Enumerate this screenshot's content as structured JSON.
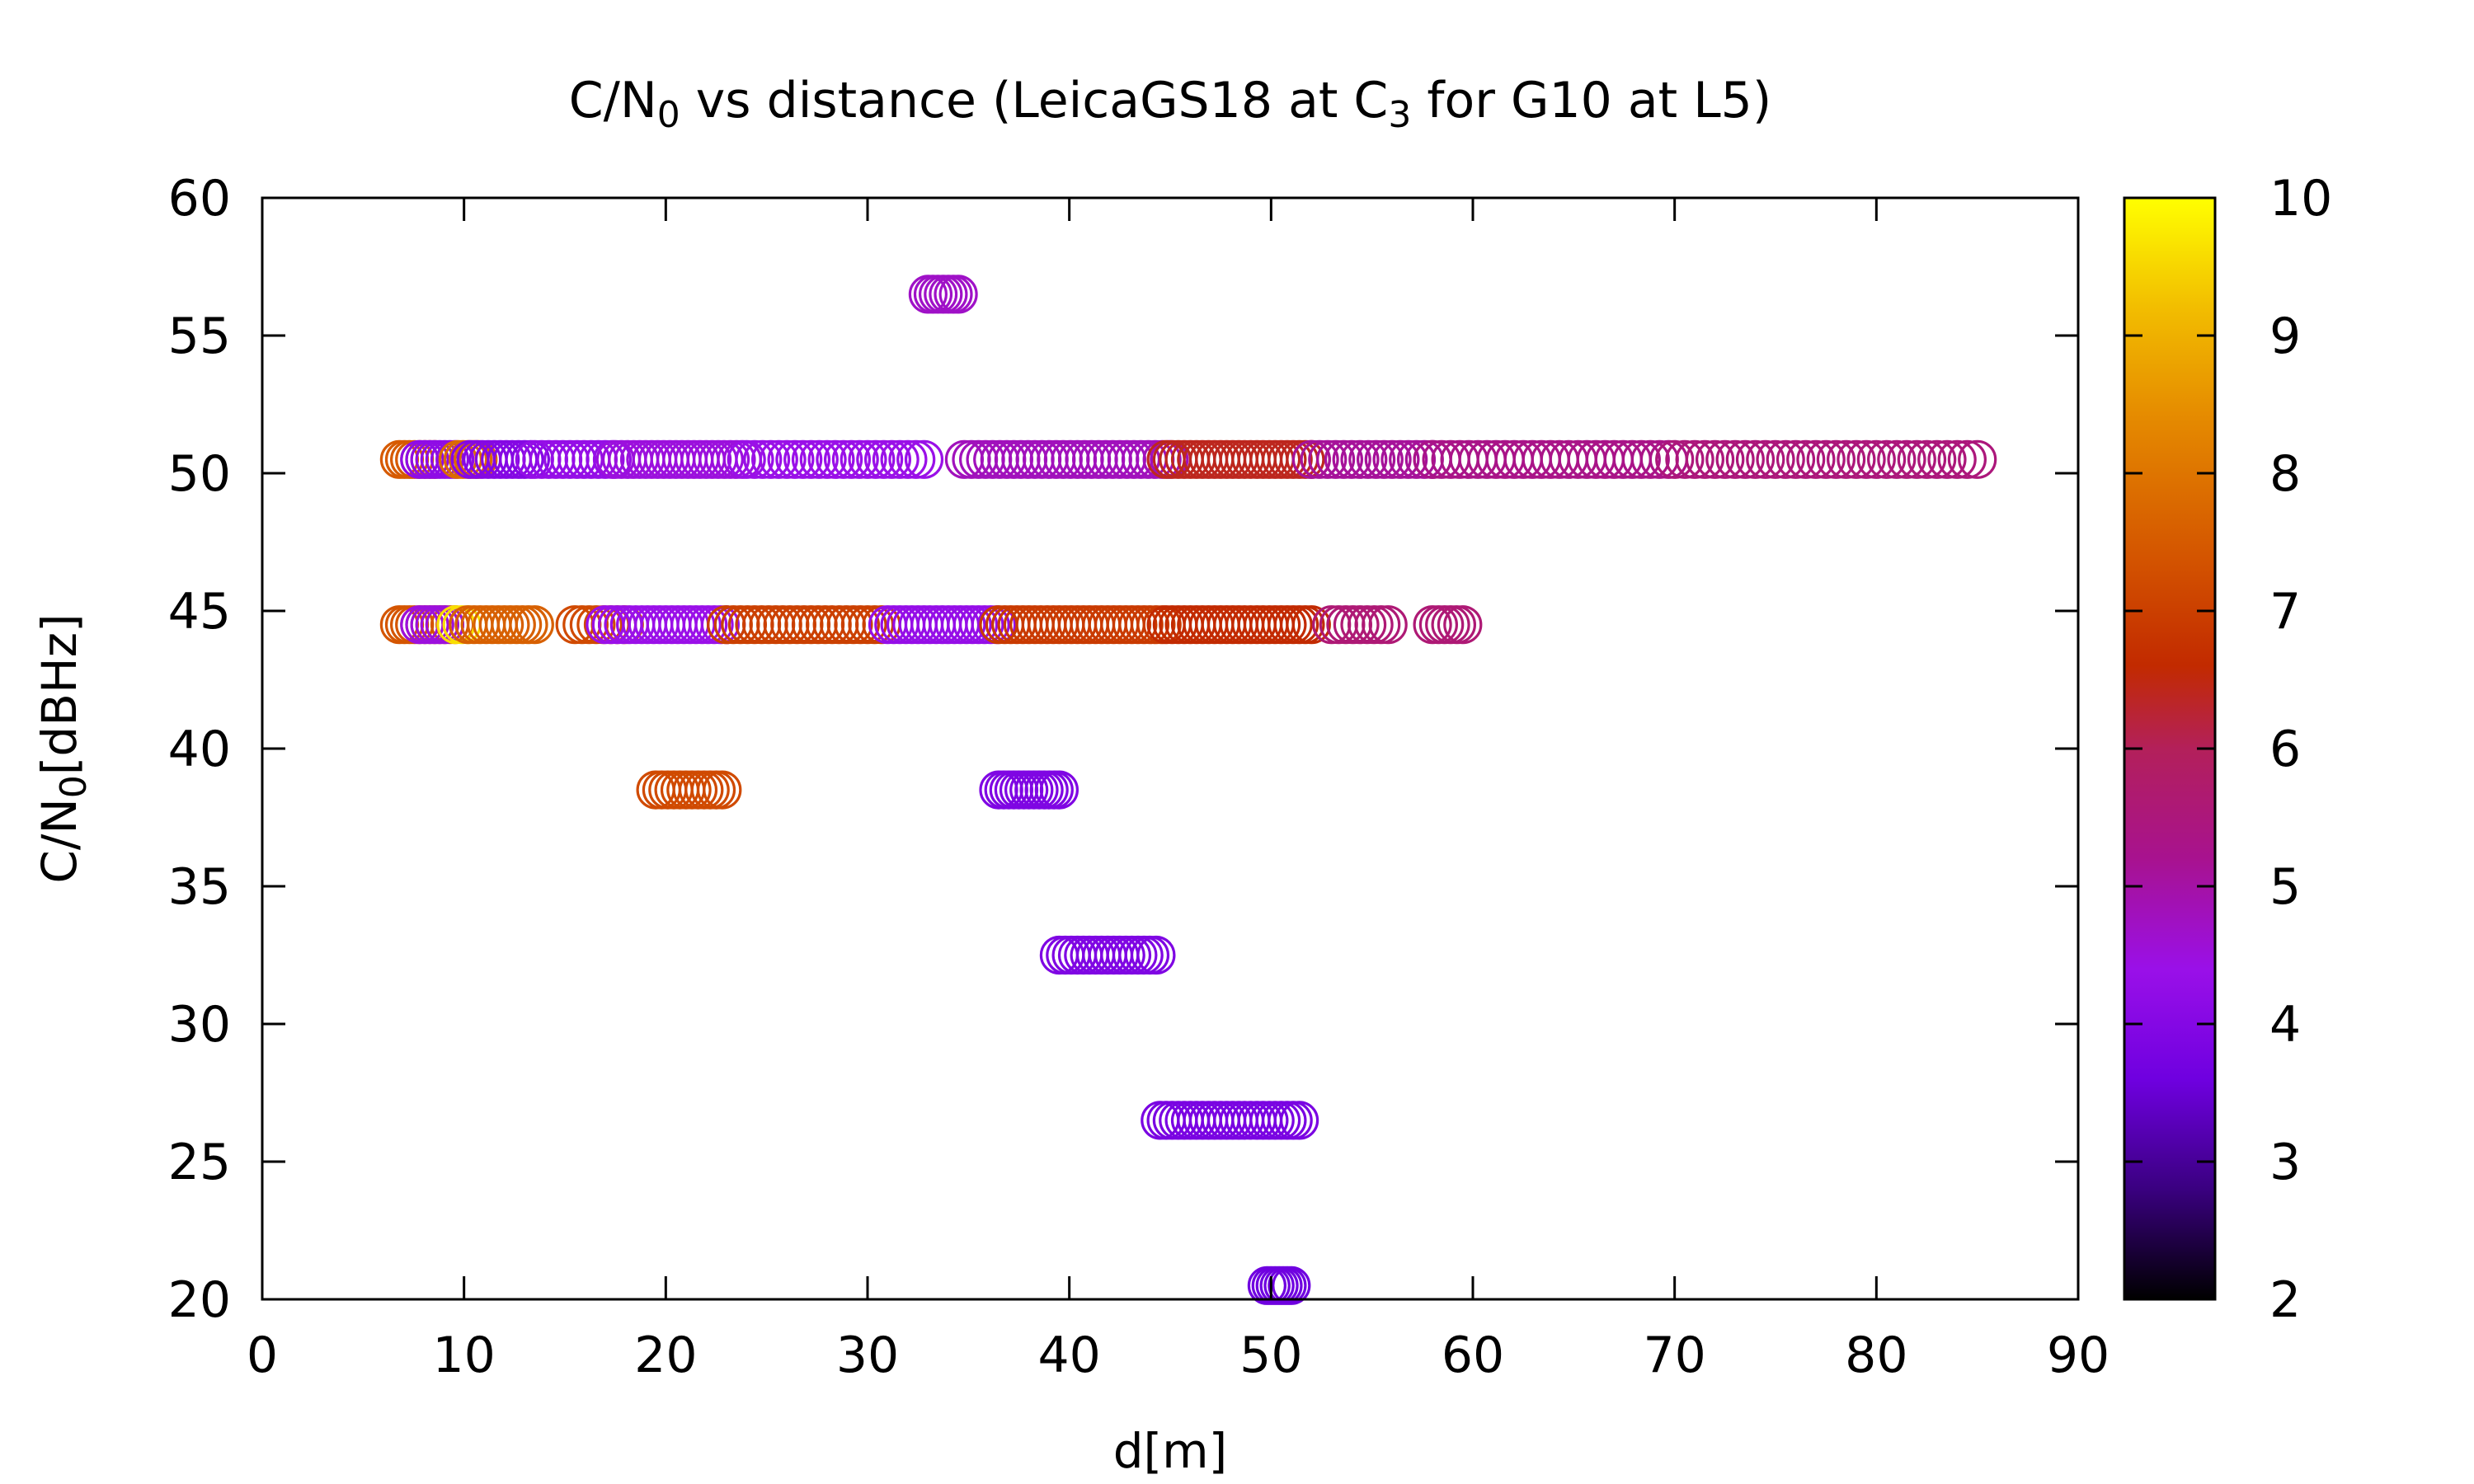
{
  "chart_data": {
    "type": "scatter",
    "title": {
      "parts": [
        {
          "text": "C/N"
        },
        {
          "text": "0",
          "sub": true
        },
        {
          "text": " vs distance (LeicaGS18 at C"
        },
        {
          "text": "3",
          "sub": true
        },
        {
          "text": " for G10 at L5)"
        }
      ]
    },
    "xlabel": "d[m]",
    "ylabel": {
      "parts": [
        {
          "text": "C/N"
        },
        {
          "text": "0",
          "sub": true
        },
        {
          "text": "[dBHz]"
        }
      ]
    },
    "xlim": [
      0,
      90
    ],
    "ylim": [
      20,
      60
    ],
    "x_ticks": [
      0,
      10,
      20,
      30,
      40,
      50,
      60,
      70,
      80,
      90
    ],
    "y_ticks": [
      20,
      25,
      30,
      35,
      40,
      45,
      50,
      55,
      60
    ],
    "grid": false,
    "marker": "open-circle",
    "colorbar": {
      "range": [
        2,
        10
      ],
      "ticks": [
        2,
        3,
        4,
        5,
        6,
        7,
        8,
        9,
        10
      ],
      "palette": "black-blue-purple-red-orange-yellow",
      "stops": [
        {
          "v": 2.0,
          "color": "#000000"
        },
        {
          "v": 2.8,
          "color": "#3a0080"
        },
        {
          "v": 3.6,
          "color": "#6f00e0"
        },
        {
          "v": 4.4,
          "color": "#9a10e8"
        },
        {
          "v": 5.2,
          "color": "#a8128f"
        },
        {
          "v": 6.0,
          "color": "#b3205a"
        },
        {
          "v": 6.6,
          "color": "#c22a00"
        },
        {
          "v": 7.4,
          "color": "#d45500"
        },
        {
          "v": 8.4,
          "color": "#e58a00"
        },
        {
          "v": 9.2,
          "color": "#f2bd00"
        },
        {
          "v": 10.0,
          "color": "#ffff00"
        }
      ]
    },
    "segments": [
      {
        "y": 56.5,
        "x_start": 33.0,
        "x_end": 34.5,
        "step": 0.25,
        "c": 4.7
      },
      {
        "y": 50.5,
        "x_start": 6.8,
        "x_end": 8.6,
        "step": 0.25,
        "c": 7.5
      },
      {
        "y": 50.5,
        "x_start": 7.8,
        "x_end": 9.6,
        "step": 0.25,
        "c": 4.2
      },
      {
        "y": 50.5,
        "x_start": 9.7,
        "x_end": 10.8,
        "step": 0.25,
        "c": 7.8
      },
      {
        "y": 50.5,
        "x_start": 10.3,
        "x_end": 13.5,
        "step": 0.3,
        "c": 4.0
      },
      {
        "y": 50.5,
        "x_start": 13.5,
        "x_end": 17.5,
        "step": 0.35,
        "c": 4.3
      },
      {
        "y": 50.5,
        "x_start": 17.5,
        "x_end": 24.0,
        "step": 0.3,
        "c": 4.5
      },
      {
        "y": 50.5,
        "x_start": 24.0,
        "x_end": 33.0,
        "step": 0.4,
        "c": 4.4
      },
      {
        "y": 50.5,
        "x_start": 34.8,
        "x_end": 45.0,
        "step": 0.35,
        "c": 4.8
      },
      {
        "y": 50.5,
        "x_start": 44.8,
        "x_end": 52.0,
        "step": 0.3,
        "c": 6.4
      },
      {
        "y": 50.5,
        "x_start": 52.0,
        "x_end": 58.0,
        "step": 0.4,
        "c": 5.1
      },
      {
        "y": 50.5,
        "x_start": 58.0,
        "x_end": 70.0,
        "step": 0.45,
        "c": 5.3
      },
      {
        "y": 50.5,
        "x_start": 70.0,
        "x_end": 85.0,
        "step": 0.5,
        "c": 5.5
      },
      {
        "y": 44.5,
        "x_start": 6.8,
        "x_end": 9.6,
        "step": 0.25,
        "c": 7.4
      },
      {
        "y": 44.5,
        "x_start": 7.8,
        "x_end": 9.2,
        "step": 0.25,
        "c": 4.5
      },
      {
        "y": 44.5,
        "x_start": 9.6,
        "x_end": 10.2,
        "step": 0.3,
        "c": 9.6
      },
      {
        "y": 44.5,
        "x_start": 10.2,
        "x_end": 13.5,
        "step": 0.3,
        "c": 7.6
      },
      {
        "y": 44.5,
        "x_start": 15.5,
        "x_end": 18.0,
        "step": 0.35,
        "c": 7.2
      },
      {
        "y": 44.5,
        "x_start": 17.0,
        "x_end": 23.0,
        "step": 0.3,
        "c": 4.4
      },
      {
        "y": 44.5,
        "x_start": 23.0,
        "x_end": 31.0,
        "step": 0.35,
        "c": 7.0
      },
      {
        "y": 44.5,
        "x_start": 31.0,
        "x_end": 36.5,
        "step": 0.3,
        "c": 4.3
      },
      {
        "y": 44.5,
        "x_start": 36.5,
        "x_end": 44.8,
        "step": 0.3,
        "c": 6.9
      },
      {
        "y": 44.5,
        "x_start": 44.8,
        "x_end": 52.0,
        "step": 0.3,
        "c": 6.6
      },
      {
        "y": 44.5,
        "x_start": 53.0,
        "x_end": 56.0,
        "step": 0.35,
        "c": 5.6
      },
      {
        "y": 44.5,
        "x_start": 58.0,
        "x_end": 59.5,
        "step": 0.3,
        "c": 5.6
      },
      {
        "y": 38.5,
        "x_start": 19.5,
        "x_end": 22.8,
        "step": 0.3,
        "c": 7.2
      },
      {
        "y": 38.5,
        "x_start": 36.5,
        "x_end": 39.5,
        "step": 0.25,
        "c": 3.9
      },
      {
        "y": 32.5,
        "x_start": 39.5,
        "x_end": 44.5,
        "step": 0.3,
        "c": 3.9
      },
      {
        "y": 26.5,
        "x_start": 44.5,
        "x_end": 51.5,
        "step": 0.3,
        "c": 3.8
      },
      {
        "y": 20.5,
        "x_start": 49.8,
        "x_end": 51.0,
        "step": 0.2,
        "c": 3.6
      }
    ]
  }
}
